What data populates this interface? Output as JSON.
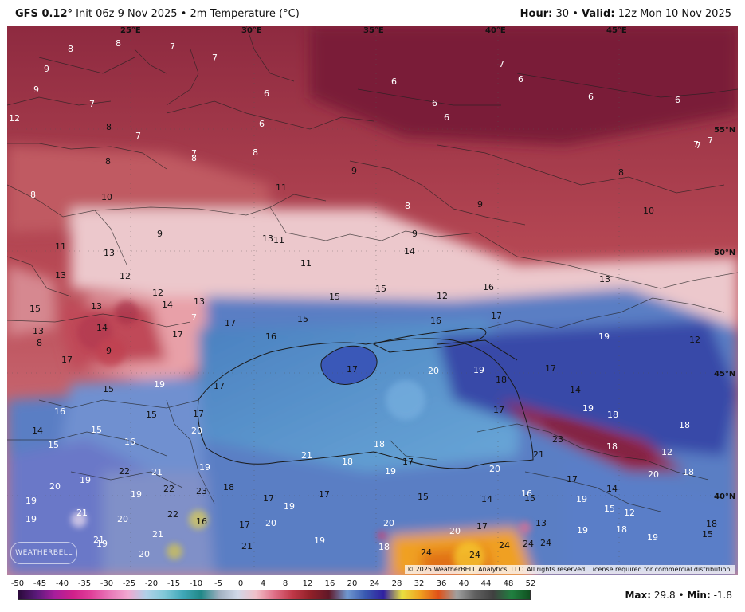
{
  "header": {
    "model": "GFS 0.12",
    "degree": "°",
    "init": "Init 06z 9 Nov 2025",
    "sep": "•",
    "field": "2m Temperature (°C)",
    "hour_label": "Hour:",
    "hour": "30",
    "valid_label": "Valid:",
    "valid": "12z Mon 10 Nov 2025"
  },
  "lon_labels": [
    "25°E",
    "30°E",
    "35°E",
    "40°E",
    "45°E"
  ],
  "lat_labels": [
    "55°N",
    "50°N",
    "45°N",
    "40°N"
  ],
  "temperature_labels": [
    {
      "v": "8",
      "c": "w"
    },
    {
      "v": "8",
      "c": "w"
    },
    {
      "v": "7",
      "c": "w"
    },
    {
      "v": "7",
      "c": "w"
    },
    {
      "v": "9",
      "c": "w"
    },
    {
      "v": "9",
      "c": "w"
    },
    {
      "v": "7",
      "c": "w"
    },
    {
      "v": "8",
      "c": "k"
    },
    {
      "v": "7",
      "c": "w"
    },
    {
      "v": "6",
      "c": "w"
    },
    {
      "v": "6",
      "c": "w"
    },
    {
      "v": "6",
      "c": "w"
    },
    {
      "v": "6",
      "c": "w"
    },
    {
      "v": "6",
      "c": "w"
    },
    {
      "v": "7",
      "c": "w"
    },
    {
      "v": "6",
      "c": "w"
    },
    {
      "v": "6",
      "c": "w"
    },
    {
      "v": "6",
      "c": "w"
    },
    {
      "v": "12",
      "c": "w"
    },
    {
      "v": "7",
      "c": "w"
    },
    {
      "v": "8",
      "c": "k"
    },
    {
      "v": "7",
      "c": "w"
    },
    {
      "v": "8",
      "c": "w"
    },
    {
      "v": "8",
      "c": "w"
    },
    {
      "v": "7",
      "c": "w"
    },
    {
      "v": "7",
      "c": "w"
    },
    {
      "v": "9",
      "c": "k"
    },
    {
      "v": "8",
      "c": "k"
    },
    {
      "v": "8",
      "c": "w"
    },
    {
      "v": "10",
      "c": "k"
    },
    {
      "v": "11",
      "c": "k"
    },
    {
      "v": "8",
      "c": "w"
    },
    {
      "v": "9",
      "c": "k"
    },
    {
      "v": "10",
      "c": "k"
    },
    {
      "v": "9",
      "c": "k"
    },
    {
      "v": "11",
      "c": "k"
    },
    {
      "v": "13",
      "c": "k"
    },
    {
      "v": "13",
      "c": "k"
    },
    {
      "v": "11",
      "c": "k"
    },
    {
      "v": "14",
      "c": "k"
    },
    {
      "v": "9",
      "c": "k"
    },
    {
      "v": "11",
      "c": "k"
    },
    {
      "v": "13",
      "c": "k"
    },
    {
      "v": "12",
      "c": "k"
    },
    {
      "v": "15",
      "c": "k"
    },
    {
      "v": "13",
      "c": "k"
    },
    {
      "v": "12",
      "c": "k"
    },
    {
      "v": "13",
      "c": "k"
    },
    {
      "v": "14",
      "c": "k"
    },
    {
      "v": "16",
      "c": "k"
    },
    {
      "v": "13",
      "c": "k"
    },
    {
      "v": "12",
      "c": "k"
    },
    {
      "v": "15",
      "c": "k"
    },
    {
      "v": "7",
      "c": "w"
    },
    {
      "v": "14",
      "c": "k"
    },
    {
      "v": "17",
      "c": "k"
    },
    {
      "v": "17",
      "c": "k"
    },
    {
      "v": "15",
      "c": "k"
    },
    {
      "v": "16",
      "c": "k"
    },
    {
      "v": "16",
      "c": "k"
    },
    {
      "v": "17",
      "c": "k"
    },
    {
      "v": "15",
      "c": "k"
    },
    {
      "v": "13",
      "c": "k"
    },
    {
      "v": "12",
      "c": "k"
    },
    {
      "v": "8",
      "c": "k"
    },
    {
      "v": "9",
      "c": "k"
    },
    {
      "v": "17",
      "c": "k"
    },
    {
      "v": "19",
      "c": "w"
    },
    {
      "v": "17",
      "c": "k"
    },
    {
      "v": "20",
      "c": "w"
    },
    {
      "v": "19",
      "c": "w"
    },
    {
      "v": "18",
      "c": "k"
    },
    {
      "v": "17",
      "c": "k"
    },
    {
      "v": "14",
      "c": "k"
    },
    {
      "v": "15",
      "c": "k"
    },
    {
      "v": "19",
      "c": "w"
    },
    {
      "v": "17",
      "c": "k"
    },
    {
      "v": "19",
      "c": "w"
    },
    {
      "v": "17",
      "c": "k"
    },
    {
      "v": "18",
      "c": "w"
    },
    {
      "v": "16",
      "c": "w"
    },
    {
      "v": "15",
      "c": "k"
    },
    {
      "v": "17",
      "c": "k"
    },
    {
      "v": "18",
      "c": "w"
    },
    {
      "v": "14",
      "c": "k"
    },
    {
      "v": "20",
      "c": "w"
    },
    {
      "v": "23",
      "c": "k"
    },
    {
      "v": "15",
      "c": "w"
    },
    {
      "v": "16",
      "c": "w"
    },
    {
      "v": "15",
      "c": "w"
    },
    {
      "v": "18",
      "c": "w"
    },
    {
      "v": "12",
      "c": "w"
    },
    {
      "v": "18",
      "c": "w"
    },
    {
      "v": "21",
      "c": "k"
    },
    {
      "v": "17",
      "c": "k"
    },
    {
      "v": "21",
      "c": "w"
    },
    {
      "v": "18",
      "c": "w"
    },
    {
      "v": "19",
      "c": "w"
    },
    {
      "v": "20",
      "c": "w"
    },
    {
      "v": "19",
      "c": "w"
    },
    {
      "v": "22",
      "c": "k"
    },
    {
      "v": "21",
      "c": "w"
    },
    {
      "v": "19",
      "c": "w"
    },
    {
      "v": "18",
      "c": "w"
    },
    {
      "v": "20",
      "c": "w"
    },
    {
      "v": "17",
      "c": "k"
    },
    {
      "v": "14",
      "c": "k"
    },
    {
      "v": "20",
      "c": "w"
    },
    {
      "v": "16",
      "c": "w"
    },
    {
      "v": "19",
      "c": "w"
    },
    {
      "v": "19",
      "c": "w"
    },
    {
      "v": "22",
      "c": "k"
    },
    {
      "v": "23",
      "c": "k"
    },
    {
      "v": "18",
      "c": "k"
    },
    {
      "v": "17",
      "c": "k"
    },
    {
      "v": "19",
      "c": "w"
    },
    {
      "v": "17",
      "c": "k"
    },
    {
      "v": "15",
      "c": "k"
    },
    {
      "v": "14",
      "c": "k"
    },
    {
      "v": "15",
      "c": "k"
    },
    {
      "v": "15",
      "c": "w"
    },
    {
      "v": "12",
      "c": "w"
    },
    {
      "v": "19",
      "c": "w"
    },
    {
      "v": "19",
      "c": "w"
    },
    {
      "v": "21",
      "c": "w"
    },
    {
      "v": "20",
      "c": "w"
    },
    {
      "v": "22",
      "c": "k"
    },
    {
      "v": "16",
      "c": "k"
    },
    {
      "v": "17",
      "c": "k"
    },
    {
      "v": "20",
      "c": "w"
    },
    {
      "v": "20",
      "c": "w"
    },
    {
      "v": "20",
      "c": "w"
    },
    {
      "v": "17",
      "c": "k"
    },
    {
      "v": "13",
      "c": "k"
    },
    {
      "v": "19",
      "c": "w"
    },
    {
      "v": "18",
      "c": "w"
    },
    {
      "v": "21",
      "c": "w"
    },
    {
      "v": "21",
      "c": "w"
    },
    {
      "v": "19",
      "c": "w"
    },
    {
      "v": "21",
      "c": "k"
    },
    {
      "v": "19",
      "c": "w"
    },
    {
      "v": "18",
      "c": "w"
    },
    {
      "v": "19",
      "c": "w"
    },
    {
      "v": "18",
      "c": "k"
    },
    {
      "v": "15",
      "c": "k"
    },
    {
      "v": "20",
      "c": "w"
    },
    {
      "v": "24",
      "c": "k"
    },
    {
      "v": "24",
      "c": "k"
    },
    {
      "v": "24",
      "c": "k"
    },
    {
      "v": "24",
      "c": "k"
    },
    {
      "v": "24",
      "c": "k"
    }
  ],
  "copyright": "© 2025 WeatherBELL Analytics, LLC. All rights reserved. License required for commercial distribution.",
  "logo_text": "WEATHERBELL",
  "colorbar": {
    "ticks": [
      "-50",
      "-45",
      "-40",
      "-35",
      "-30",
      "-25",
      "-20",
      "-15",
      "-10",
      "-5",
      "0",
      "4",
      "8",
      "12",
      "16",
      "20",
      "24",
      "28",
      "32",
      "36",
      "40",
      "44",
      "48",
      "52"
    ],
    "colors": [
      "#2a0a3a",
      "#5a1a7a",
      "#a81e9c",
      "#d0208a",
      "#e0409a",
      "#e878b8",
      "#f0a8d0",
      "#b0d0e8",
      "#80c8d8",
      "#40a8b8",
      "#208888",
      "#a0b0c0",
      "#d0d8e8",
      "#f0c0c8",
      "#e07088",
      "#c03848",
      "#902028",
      "#601828",
      "#7098d0",
      "#3858b0",
      "#3020a0",
      "#e8e040",
      "#f0a020",
      "#e05018",
      "#a0a0a0",
      "#606060",
      "#404040",
      "#208040",
      "#105020"
    ]
  },
  "stats": {
    "max_label": "Max:",
    "max": "29.8",
    "sep": "•",
    "min_label": "Min:",
    "min": "-1.8"
  }
}
